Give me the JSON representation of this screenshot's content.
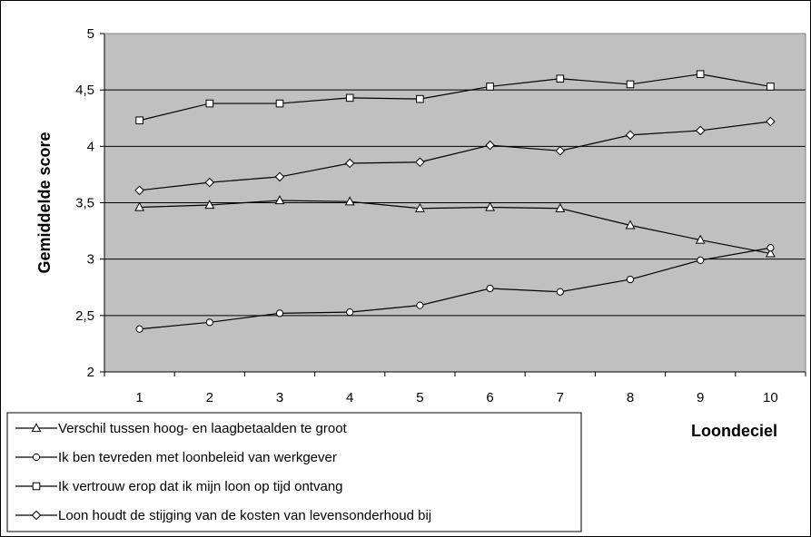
{
  "chart_data": {
    "type": "line",
    "title": "",
    "xlabel": "Loondeciel",
    "ylabel": "Gemiddelde score",
    "categories": [
      "1",
      "2",
      "3",
      "4",
      "5",
      "6",
      "7",
      "8",
      "9",
      "10"
    ],
    "y_tick_labels": [
      "2",
      "2,5",
      "3",
      "3,5",
      "4",
      "4,5",
      "5"
    ],
    "ylim": [
      2,
      5
    ],
    "grid": true,
    "plot_background": "#c0c0c0",
    "line_color": "#000000",
    "legend_position": "bottom-left",
    "series": [
      {
        "name": "Verschil tussen hoog- en laagbetaalden te groot",
        "marker": "triangle",
        "values": [
          3.46,
          3.48,
          3.52,
          3.51,
          3.45,
          3.46,
          3.45,
          3.3,
          3.17,
          3.05
        ]
      },
      {
        "name": "Ik ben tevreden met loonbeleid van werkgever",
        "marker": "circle",
        "values": [
          2.38,
          2.44,
          2.52,
          2.53,
          2.59,
          2.74,
          2.71,
          2.82,
          2.99,
          3.1
        ]
      },
      {
        "name": "Ik vertrouw erop dat ik mijn loon op tijd ontvang",
        "marker": "square",
        "values": [
          4.23,
          4.38,
          4.38,
          4.43,
          4.42,
          4.53,
          4.6,
          4.55,
          4.64,
          4.53
        ]
      },
      {
        "name": "Loon houdt de stijging van de kosten van levensonderhoud bij",
        "marker": "diamond",
        "values": [
          3.61,
          3.68,
          3.73,
          3.85,
          3.86,
          4.01,
          3.96,
          4.1,
          4.14,
          4.22
        ]
      }
    ]
  }
}
